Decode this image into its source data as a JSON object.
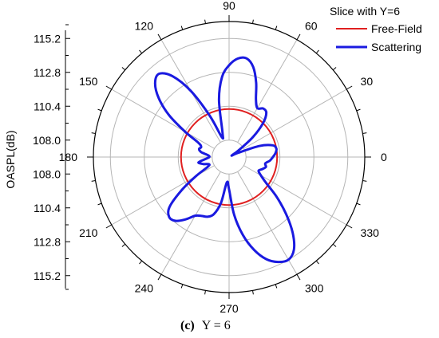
{
  "chart_data": {
    "type": "polar",
    "legend_title": "Slice with Y=6",
    "legend_position": "top-right",
    "ylabel": "OASPL(dB)",
    "caption_prefix": "(c)",
    "caption_text": "Y = 6",
    "radial_range_db": [
      106.8,
      116.4
    ],
    "radial_tick_labels_upper": [
      "115.2",
      "112.8",
      "110.4",
      "108.0"
    ],
    "radial_tick_labels_lower": [
      "108.0",
      "110.4",
      "112.8",
      "115.2"
    ],
    "radial_tick_values": [
      108.0,
      110.4,
      112.8,
      115.2
    ],
    "angle_ticks": [
      0,
      30,
      60,
      90,
      120,
      150,
      180,
      210,
      240,
      270,
      300,
      330
    ],
    "angle_tick_labels": [
      "0",
      "30",
      "60",
      "90",
      "120",
      "150",
      "180",
      "210",
      "240",
      "270",
      "300",
      "330"
    ],
    "grid": true,
    "series": [
      {
        "name": "Free-Field",
        "color": "#e02020",
        "kind": "constant",
        "value_db": 110.2
      },
      {
        "name": "Scattering",
        "color": "#1a1ae0",
        "kind": "curve",
        "angles": [
          0,
          5,
          10,
          15,
          20,
          25,
          30,
          35,
          40,
          45,
          50,
          55,
          60,
          65,
          70,
          75,
          80,
          85,
          90,
          95,
          100,
          105,
          110,
          115,
          120,
          125,
          130,
          135,
          140,
          145,
          150,
          155,
          160,
          165,
          170,
          175,
          180,
          185,
          190,
          195,
          200,
          205,
          210,
          215,
          220,
          225,
          230,
          235,
          240,
          245,
          250,
          255,
          260,
          265,
          270,
          275,
          280,
          285,
          290,
          295,
          300,
          305,
          310,
          315,
          320,
          325,
          330,
          335,
          340,
          345,
          350,
          355
        ],
        "values_db": [
          109.9,
          110.1,
          110.2,
          110.0,
          109.1,
          107.5,
          107.0,
          107.6,
          109.0,
          110.2,
          110.9,
          111.0,
          110.8,
          111.3,
          112.4,
          113.4,
          113.9,
          113.8,
          113.3,
          112.5,
          110.9,
          108.6,
          108.3,
          110.0,
          112.2,
          113.8,
          114.5,
          114.2,
          113.3,
          112.0,
          110.4,
          109.2,
          108.9,
          109.0,
          108.8,
          108.3,
          108.2,
          108.5,
          109.0,
          108.7,
          108.3,
          108.5,
          109.5,
          110.9,
          112.3,
          112.8,
          112.7,
          112.2,
          111.6,
          111.4,
          111.3,
          111.0,
          110.1,
          108.6,
          109.1,
          110.9,
          112.4,
          113.6,
          114.5,
          115.0,
          115.2,
          114.8,
          113.8,
          112.5,
          111.2,
          110.0,
          109.4,
          109.1,
          109.3,
          109.5,
          109.4,
          109.7
        ]
      }
    ]
  }
}
